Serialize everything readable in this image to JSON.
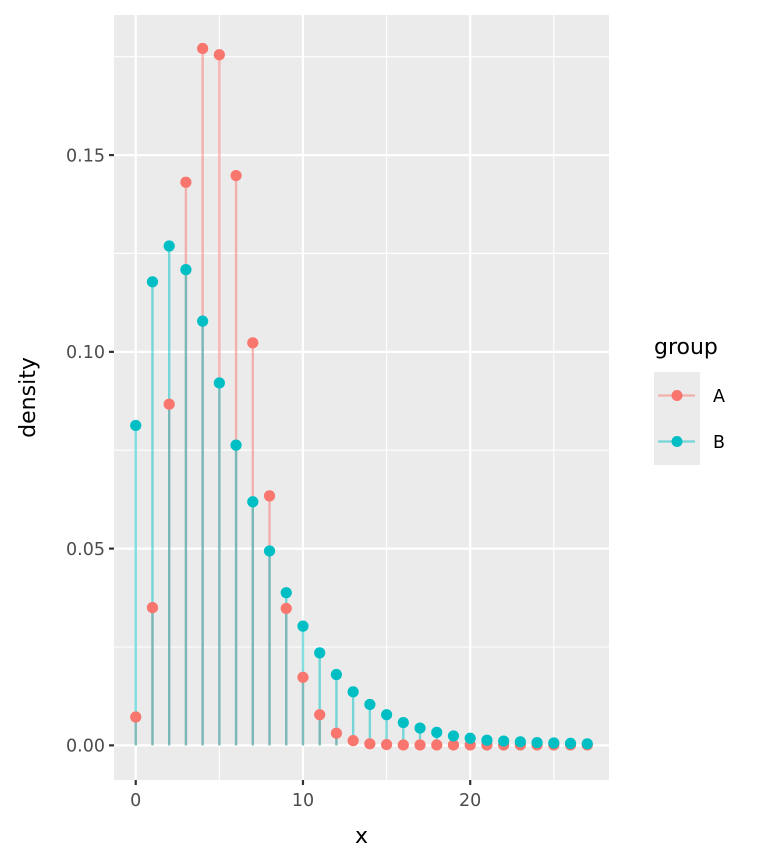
{
  "chart_data": {
    "type": "lollipop",
    "title": "",
    "xlabel": "x",
    "ylabel": "density",
    "xlim": [
      -1.3,
      28.3
    ],
    "ylim": [
      -0.0088,
      0.1856
    ],
    "x_ticks": [
      0,
      10,
      20
    ],
    "x_tick_labels": [
      "0",
      "10",
      "20"
    ],
    "y_ticks": [
      0,
      0.05,
      0.1,
      0.15
    ],
    "y_tick_labels": [
      "0.00",
      "0.05",
      "0.10",
      "0.15"
    ],
    "grid": true,
    "legend": {
      "title": "group",
      "position": "right"
    },
    "x": [
      0,
      1,
      2,
      3,
      4,
      5,
      6,
      7,
      8,
      9,
      10,
      11,
      12,
      13,
      14,
      15,
      16,
      17,
      18,
      19,
      20,
      21,
      22,
      23,
      24,
      25,
      26,
      27
    ],
    "series": [
      {
        "name": "A",
        "color": "#F8766D",
        "values": [
          0.0072,
          0.035,
          0.0867,
          0.1431,
          0.1771,
          0.1755,
          0.1448,
          0.1023,
          0.0634,
          0.0348,
          0.0173,
          0.0078,
          0.0031,
          0.0012,
          0.0004,
          0.0002,
          0.0001,
          0.0001,
          0.0001,
          0.0001,
          0.0001,
          0.0001,
          0.0001,
          0.0001,
          0.0001,
          0.0001,
          0.0001,
          0.0001
        ]
      },
      {
        "name": "B",
        "color": "#00BFC4",
        "values": [
          0.0813,
          0.1178,
          0.1269,
          0.1209,
          0.1078,
          0.0921,
          0.0763,
          0.0619,
          0.0494,
          0.0388,
          0.0303,
          0.0235,
          0.018,
          0.0136,
          0.0104,
          0.0078,
          0.0058,
          0.0044,
          0.0033,
          0.0024,
          0.0018,
          0.0013,
          0.0011,
          0.0009,
          0.0007,
          0.0006,
          0.0005,
          0.0004
        ]
      }
    ]
  }
}
